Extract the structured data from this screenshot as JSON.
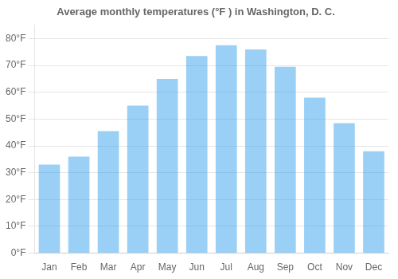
{
  "chart_data": {
    "type": "bar",
    "title": "Average monthly temperatures (°F ) in Washington, D. C.",
    "categories": [
      "Jan",
      "Feb",
      "Mar",
      "Apr",
      "May",
      "Jun",
      "Jul",
      "Aug",
      "Sep",
      "Oct",
      "Nov",
      "Dec"
    ],
    "values": [
      33,
      36,
      45.5,
      55,
      65,
      73.5,
      77.5,
      76,
      69.5,
      58,
      48.5,
      38
    ],
    "ylim": [
      0,
      85
    ],
    "yticks": [
      {
        "value": 0,
        "label": "0°F"
      },
      {
        "value": 10,
        "label": "10°F"
      },
      {
        "value": 20,
        "label": "20°F"
      },
      {
        "value": 30,
        "label": "30°F"
      },
      {
        "value": 40,
        "label": "40°F"
      },
      {
        "value": 50,
        "label": "50°F"
      },
      {
        "value": 60,
        "label": "60°F"
      },
      {
        "value": 70,
        "label": "70°F"
      },
      {
        "value": 80,
        "label": "80°F"
      }
    ],
    "grid": true
  }
}
